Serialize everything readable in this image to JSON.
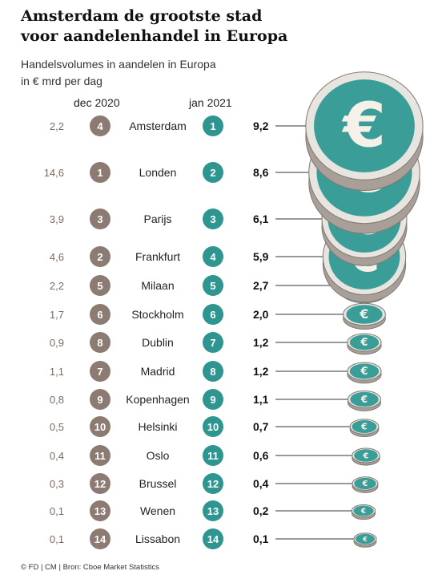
{
  "header": {
    "title": "Amsterdam de grootste stad voor aandelenhandel in Europa",
    "subtitle_line1": "Handelsvolumes in aandelen in Europa",
    "subtitle_line2": "in € mrd per dag",
    "col_prev": "dec 2020",
    "col_curr": "jan 2021"
  },
  "footer": {
    "source": "© FD | CM | Bron: Cboe Market Statistics"
  },
  "colors": {
    "brown": "#8c7b72",
    "teal": "#2f9590",
    "coin_teal": "#3a9d97",
    "coin_edge": "#a79f98",
    "line": "#333333"
  },
  "chart_data": {
    "type": "table",
    "categories": [
      "Amsterdam",
      "Londen",
      "Parijs",
      "Frankfurt",
      "Milaan",
      "Stockholm",
      "Dublin",
      "Madrid",
      "Kopenhagen",
      "Helsinki",
      "Oslo",
      "Brussel",
      "Wenen",
      "Lissabon"
    ],
    "series": [
      {
        "name": "dec 2020",
        "values": [
          "2,2",
          "14,6",
          "3,9",
          "4,6",
          "2,2",
          "1,7",
          "0,9",
          "1,1",
          "0,8",
          "0,5",
          "0,4",
          "0,3",
          "0,1",
          "0,1"
        ]
      },
      {
        "name": "dec 2020",
        "values": [
          4,
          1,
          3,
          2,
          5,
          6,
          8,
          7,
          9,
          10,
          11,
          12,
          13,
          14
        ]
      },
      {
        "name": "jan 2021",
        "values": [
          1,
          2,
          3,
          4,
          5,
          6,
          7,
          8,
          9,
          10,
          11,
          12,
          13,
          14
        ]
      },
      {
        "name": "jan 2021",
        "values": [
          "9,2",
          "8,6",
          "6,1",
          "5,9",
          "2,7",
          "2,0",
          "1,2",
          "1,2",
          "1,1",
          "0,7",
          "0,6",
          "0,4",
          "0,2",
          "0,1"
        ]
      }
    ]
  }
}
